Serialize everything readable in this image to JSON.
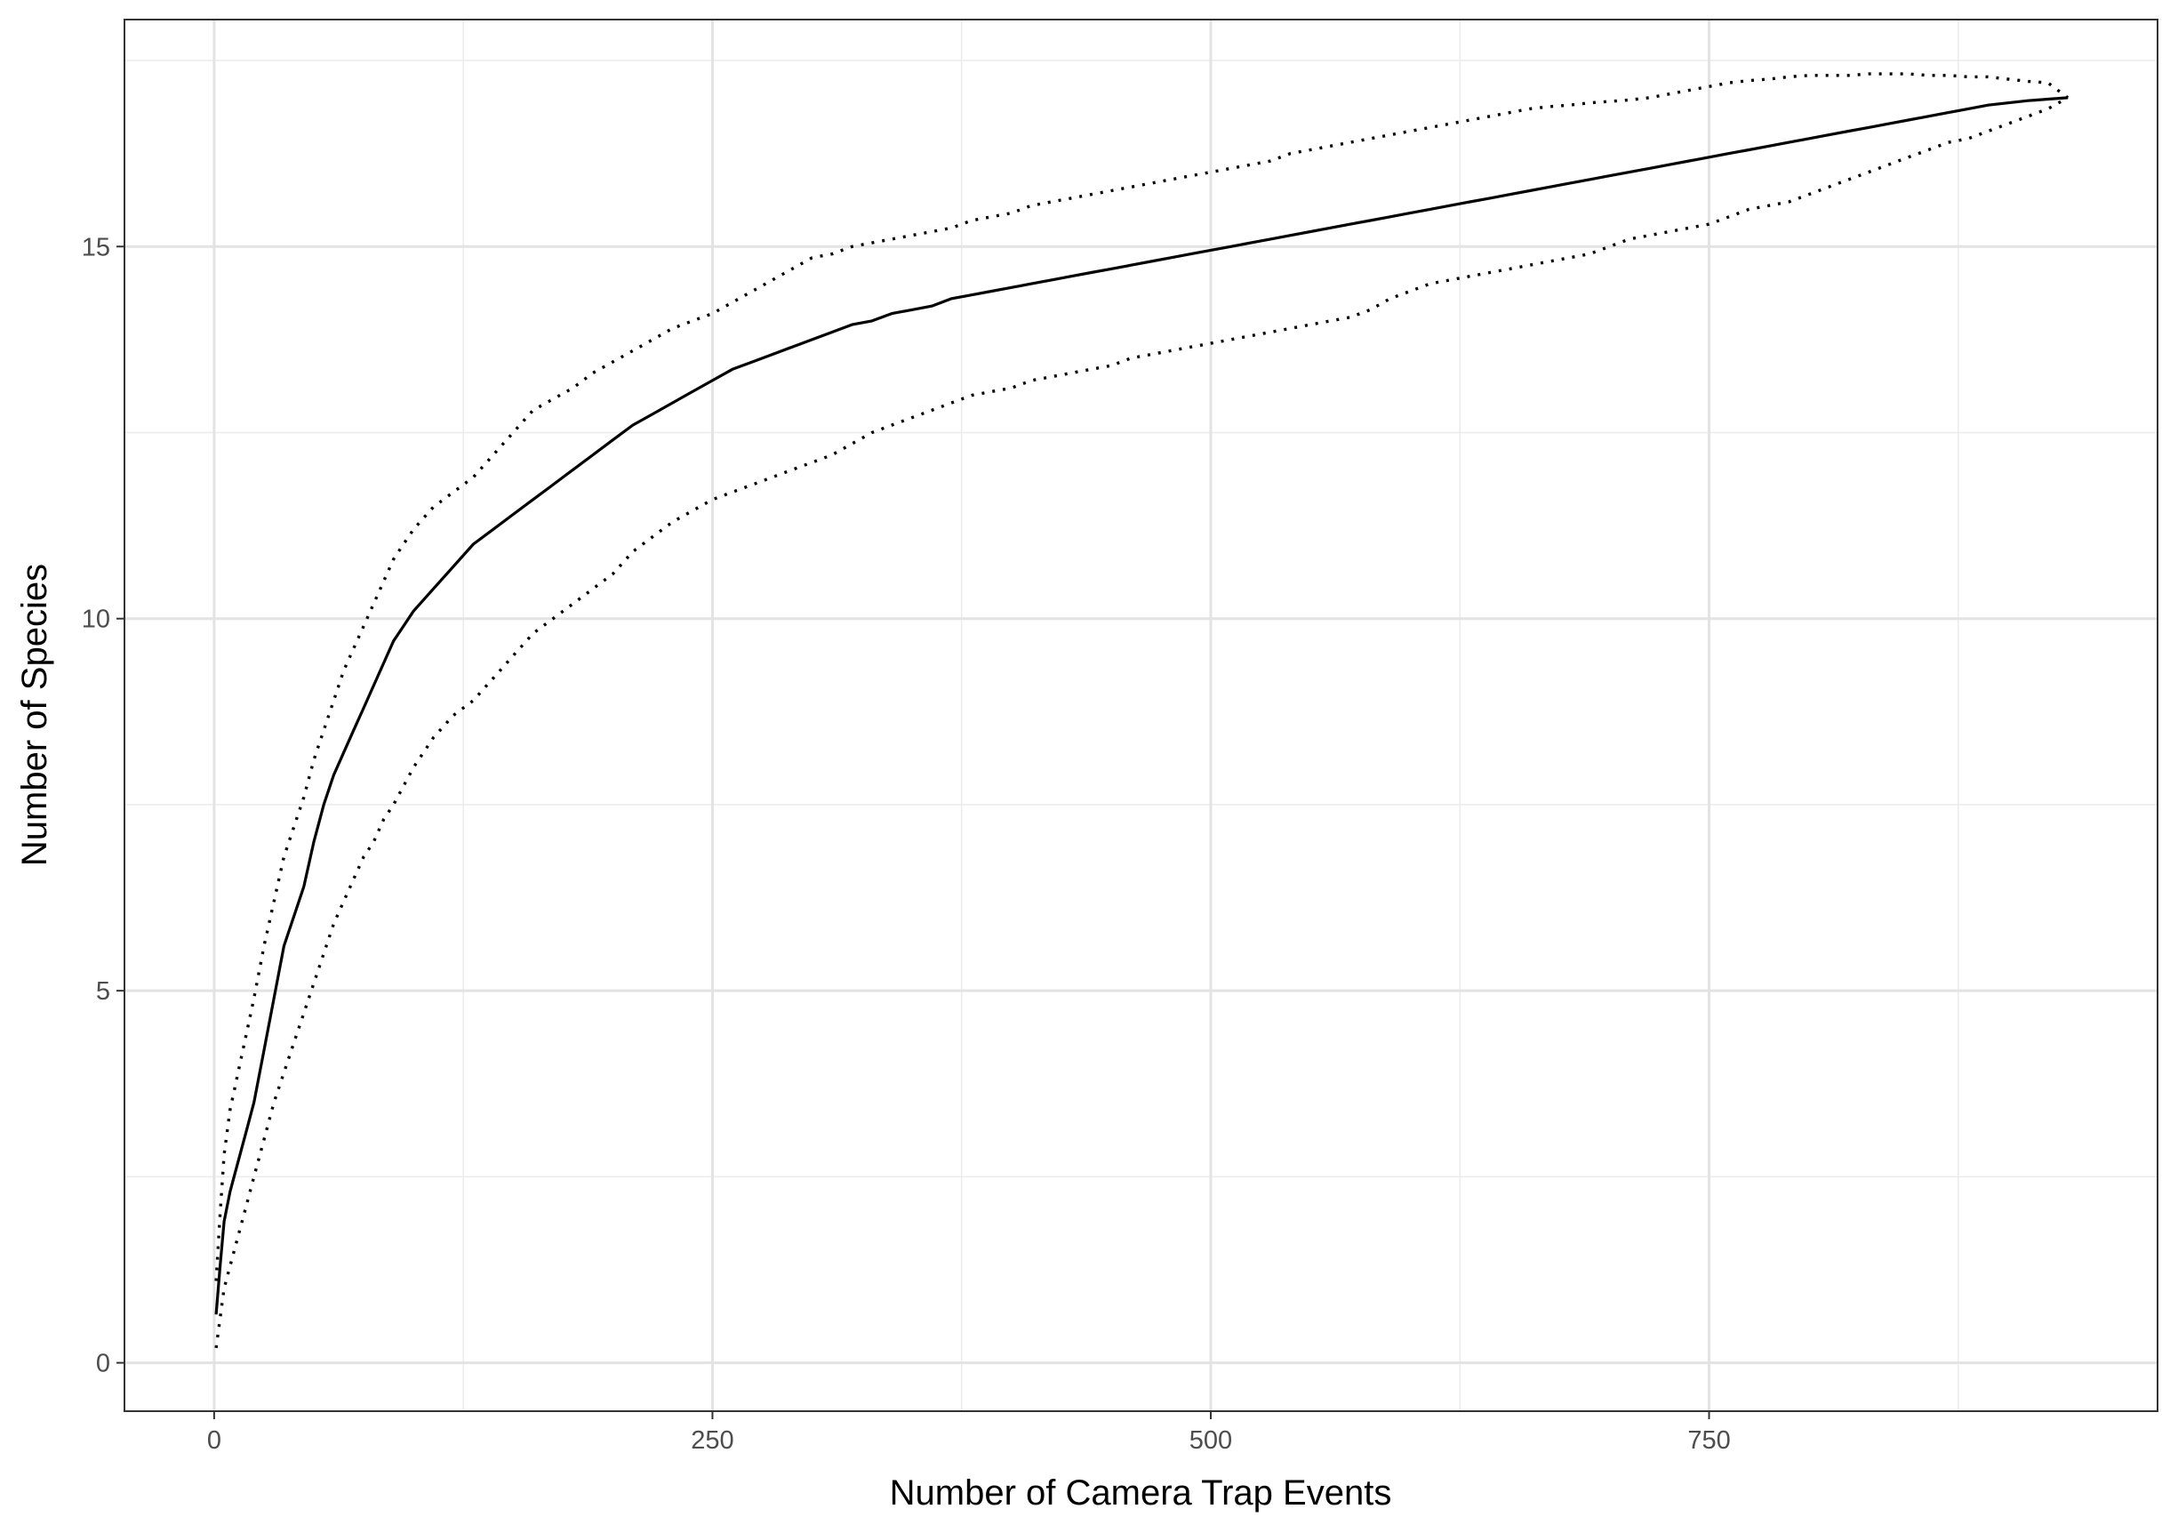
{
  "chart_data": {
    "type": "line",
    "title": "",
    "xlabel": "Number of Camera Trap Events",
    "ylabel": "Number of Species",
    "xlim": [
      -45,
      975
    ],
    "ylim": [
      -0.65,
      18.05
    ],
    "x_major_ticks": [
      0,
      250,
      500,
      750
    ],
    "x_minor_ticks": [
      125,
      375,
      625,
      875
    ],
    "y_major_ticks": [
      0,
      5,
      10,
      15
    ],
    "y_minor_ticks": [
      2.5,
      7.5,
      12.5,
      17.5
    ],
    "x_tick_labels": [
      "0",
      "250",
      "500",
      "750"
    ],
    "y_tick_labels": [
      "0",
      "5",
      "10",
      "15"
    ],
    "grid": true,
    "legend": "none",
    "series": [
      {
        "style": "solid",
        "color": "#000000",
        "x": [
          1,
          3,
          5,
          8,
          12,
          16,
          20,
          25,
          30,
          35,
          40,
          45,
          50,
          55,
          60,
          65,
          70,
          75,
          80,
          85,
          90,
          95,
          100,
          110,
          120,
          130,
          140,
          150,
          160,
          170,
          180,
          190,
          200,
          210,
          220,
          230,
          240,
          250,
          260,
          270,
          280,
          290,
          300,
          310,
          320,
          330,
          340,
          350,
          360,
          370,
          380,
          390,
          400,
          410,
          420,
          430,
          440,
          450,
          460,
          470,
          480,
          490,
          500,
          510,
          520,
          530,
          540,
          550,
          560,
          570,
          580,
          590,
          600,
          610,
          620,
          630,
          640,
          650,
          660,
          670,
          680,
          690,
          700,
          710,
          720,
          730,
          740,
          750,
          760,
          770,
          780,
          790,
          800,
          810,
          820,
          830,
          840,
          850,
          860,
          870,
          880,
          890,
          900,
          910,
          920,
          930
        ],
        "y": [
          0.65,
          1.3,
          1.9,
          2.3,
          2.7,
          3.1,
          3.5,
          4.2,
          4.9,
          5.6,
          6.0,
          6.4,
          7.0,
          7.5,
          7.9,
          8.2,
          8.5,
          8.8,
          9.1,
          9.4,
          9.7,
          9.9,
          10.1,
          10.4,
          10.7,
          11.0,
          11.2,
          11.4,
          11.6,
          11.8,
          12.0,
          12.2,
          12.4,
          12.6,
          12.75,
          12.9,
          13.05,
          13.2,
          13.35,
          13.45,
          13.55,
          13.65,
          13.75,
          13.85,
          13.95,
          14.0,
          14.1,
          14.15,
          14.2,
          14.3,
          14.35,
          14.4,
          14.45,
          14.5,
          14.55,
          14.6,
          14.65,
          14.7,
          14.75,
          14.8,
          14.85,
          14.9,
          14.95,
          15.0,
          15.05,
          15.1,
          15.15,
          15.2,
          15.25,
          15.3,
          15.35,
          15.4,
          15.45,
          15.5,
          15.55,
          15.6,
          15.65,
          15.7,
          15.75,
          15.8,
          15.85,
          15.9,
          15.95,
          16.0,
          16.05,
          16.1,
          16.15,
          16.2,
          16.25,
          16.3,
          16.35,
          16.4,
          16.45,
          16.5,
          16.55,
          16.6,
          16.65,
          16.7,
          16.75,
          16.8,
          16.85,
          16.9,
          16.93,
          16.96,
          16.98,
          17.0
        ]
      },
      {
        "style": "dotted",
        "color": "#000000",
        "x": [
          1,
          3,
          5,
          8,
          12,
          16,
          20,
          25,
          30,
          35,
          40,
          45,
          50,
          55,
          60,
          65,
          70,
          75,
          80,
          85,
          90,
          95,
          100,
          110,
          120,
          130,
          140,
          150,
          160,
          170,
          180,
          190,
          200,
          210,
          220,
          230,
          240,
          250,
          260,
          270,
          280,
          290,
          300,
          310,
          320,
          330,
          340,
          350,
          360,
          370,
          380,
          390,
          400,
          410,
          420,
          430,
          440,
          450,
          460,
          470,
          480,
          490,
          500,
          510,
          520,
          530,
          540,
          550,
          560,
          570,
          580,
          590,
          600,
          610,
          620,
          630,
          640,
          650,
          660,
          670,
          680,
          690,
          700,
          710,
          720,
          730,
          740,
          750,
          760,
          770,
          780,
          790,
          800,
          810,
          820,
          830,
          840,
          850,
          860,
          870,
          880,
          890,
          900,
          910,
          920,
          930
        ],
        "y": [
          1.1,
          2.0,
          2.8,
          3.4,
          3.9,
          4.4,
          4.9,
          5.6,
          6.2,
          6.8,
          7.2,
          7.6,
          8.1,
          8.5,
          8.9,
          9.3,
          9.6,
          9.9,
          10.2,
          10.5,
          10.8,
          11.0,
          11.2,
          11.5,
          11.7,
          11.9,
          12.2,
          12.5,
          12.8,
          12.95,
          13.1,
          13.3,
          13.45,
          13.6,
          13.75,
          13.9,
          14.0,
          14.1,
          14.25,
          14.4,
          14.55,
          14.7,
          14.85,
          14.9,
          15.0,
          15.05,
          15.1,
          15.15,
          15.2,
          15.25,
          15.35,
          15.4,
          15.45,
          15.55,
          15.6,
          15.65,
          15.7,
          15.75,
          15.8,
          15.85,
          15.9,
          15.95,
          16.0,
          16.05,
          16.1,
          16.15,
          16.25,
          16.3,
          16.35,
          16.4,
          16.45,
          16.5,
          16.55,
          16.6,
          16.65,
          16.7,
          16.75,
          16.8,
          16.85,
          16.88,
          16.9,
          16.93,
          16.95,
          16.97,
          17.0,
          17.05,
          17.1,
          17.15,
          17.2,
          17.23,
          17.25,
          17.28,
          17.3,
          17.3,
          17.3,
          17.32,
          17.32,
          17.32,
          17.3,
          17.3,
          17.28,
          17.28,
          17.25,
          17.22,
          17.2,
          17.0
        ]
      },
      {
        "style": "dotted",
        "color": "#000000",
        "x": [
          1,
          3,
          5,
          8,
          12,
          16,
          20,
          25,
          30,
          35,
          40,
          45,
          50,
          55,
          60,
          65,
          70,
          75,
          80,
          85,
          90,
          95,
          100,
          110,
          120,
          130,
          140,
          150,
          160,
          170,
          180,
          190,
          200,
          210,
          220,
          230,
          240,
          250,
          260,
          270,
          280,
          290,
          300,
          310,
          320,
          330,
          340,
          350,
          360,
          370,
          380,
          390,
          400,
          410,
          420,
          430,
          440,
          450,
          460,
          470,
          480,
          490,
          500,
          510,
          520,
          530,
          540,
          550,
          560,
          570,
          580,
          590,
          600,
          610,
          620,
          630,
          640,
          650,
          660,
          670,
          680,
          690,
          700,
          710,
          720,
          730,
          740,
          750,
          760,
          770,
          780,
          790,
          800,
          810,
          820,
          830,
          840,
          850,
          860,
          870,
          880,
          890,
          900,
          910,
          920,
          930
        ],
        "y": [
          0.2,
          0.6,
          1.0,
          1.3,
          1.7,
          2.1,
          2.5,
          3.0,
          3.5,
          3.9,
          4.3,
          4.7,
          5.1,
          5.5,
          5.9,
          6.2,
          6.5,
          6.8,
          7.0,
          7.3,
          7.5,
          7.75,
          8.0,
          8.4,
          8.7,
          8.9,
          9.2,
          9.5,
          9.8,
          10.0,
          10.2,
          10.4,
          10.6,
          10.9,
          11.1,
          11.3,
          11.45,
          11.6,
          11.7,
          11.8,
          11.9,
          12.0,
          12.1,
          12.2,
          12.35,
          12.5,
          12.6,
          12.7,
          12.8,
          12.9,
          13.0,
          13.05,
          13.1,
          13.2,
          13.25,
          13.3,
          13.35,
          13.4,
          13.5,
          13.55,
          13.6,
          13.65,
          13.7,
          13.75,
          13.8,
          13.85,
          13.9,
          13.95,
          14.0,
          14.05,
          14.15,
          14.3,
          14.4,
          14.5,
          14.55,
          14.6,
          14.65,
          14.7,
          14.75,
          14.8,
          14.85,
          14.9,
          15.0,
          15.1,
          15.15,
          15.2,
          15.25,
          15.3,
          15.4,
          15.5,
          15.55,
          15.6,
          15.7,
          15.8,
          15.9,
          16.0,
          16.1,
          16.2,
          16.3,
          16.4,
          16.45,
          16.55,
          16.65,
          16.75,
          16.85,
          17.0
        ]
      }
    ]
  }
}
